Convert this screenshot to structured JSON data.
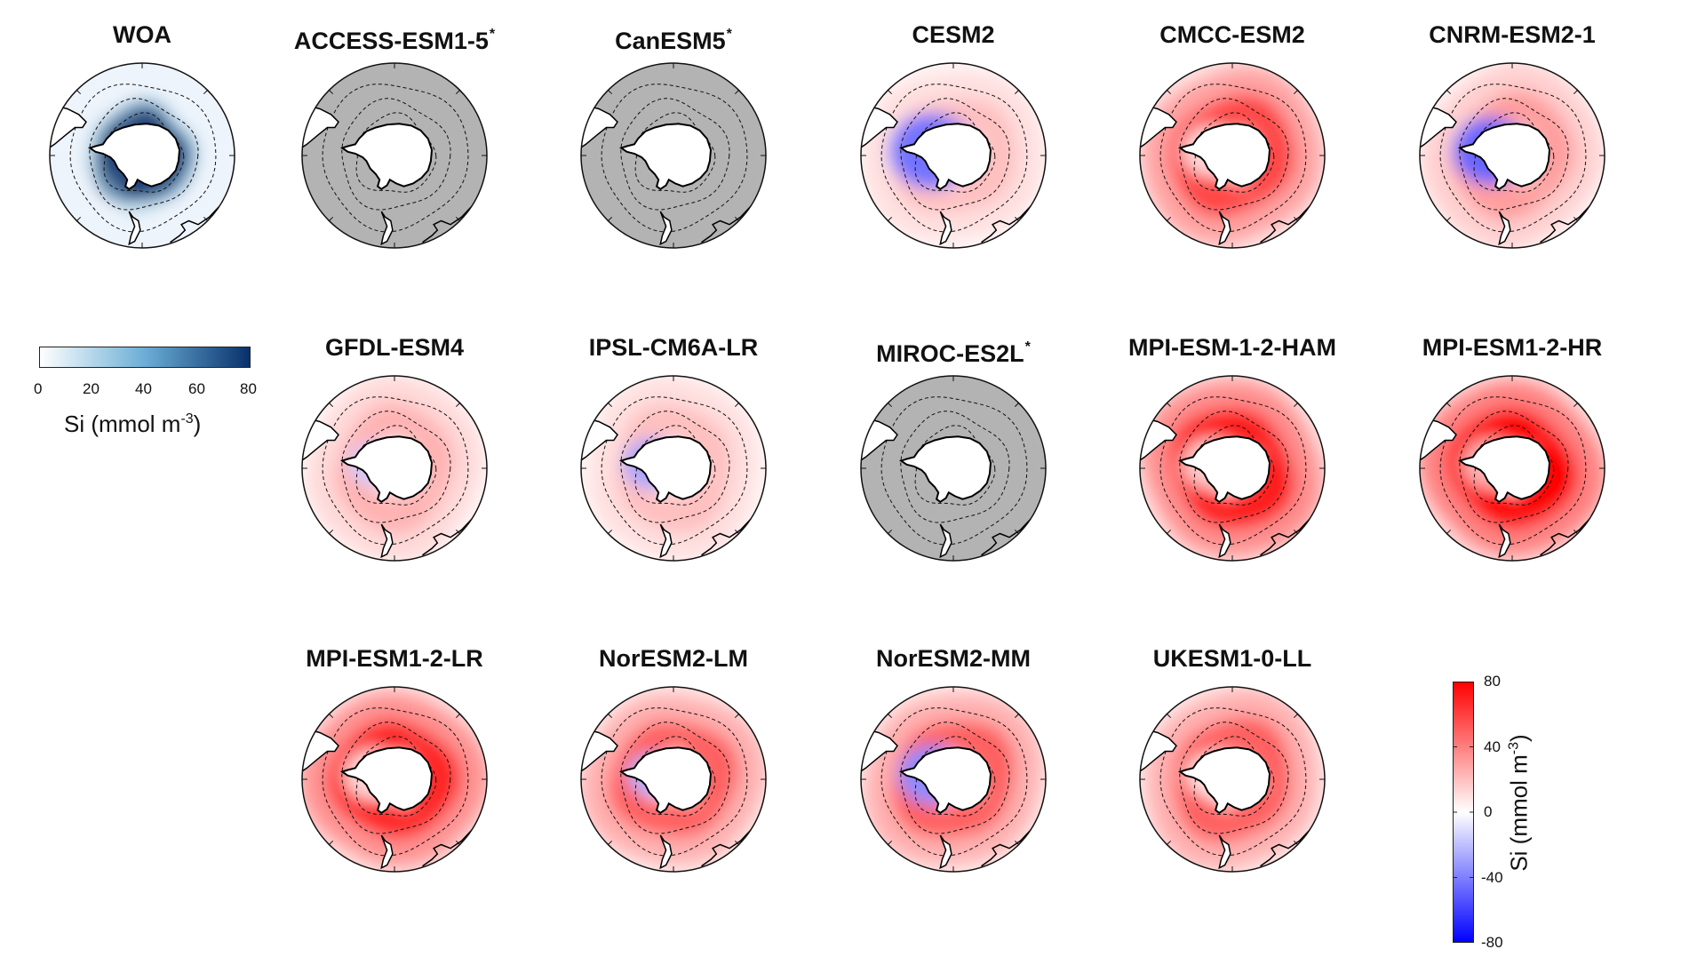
{
  "panels": [
    {
      "id": "woa",
      "title": "WOA",
      "star": "",
      "mode": "obs",
      "ring": 0.95
    },
    {
      "id": "access",
      "title": "ACCESS-ESM1-5",
      "star": "*",
      "mode": "gray",
      "ring": 0
    },
    {
      "id": "canesm5",
      "title": "CanESM5",
      "star": "*",
      "mode": "gray",
      "ring": 0
    },
    {
      "id": "cesm2",
      "title": "CESM2",
      "star": "",
      "mode": "diff",
      "ring": 0.25,
      "inner": -0.55,
      "innerExtent": 0.45
    },
    {
      "id": "cmcc",
      "title": "CMCC-ESM2",
      "star": "",
      "mode": "diff",
      "ring": 0.72,
      "inner": 0.15,
      "innerExtent": 0.3
    },
    {
      "id": "cnrm",
      "title": "CNRM-ESM2-1",
      "star": "",
      "mode": "diff",
      "ring": 0.38,
      "inner": -0.6,
      "innerExtent": 0.4
    },
    {
      "id": "gfdl",
      "title": "GFDL-ESM4",
      "star": "",
      "mode": "diff",
      "ring": 0.3,
      "inner": -0.2,
      "innerExtent": 0.25
    },
    {
      "id": "ipsl",
      "title": "IPSL-CM6A-LR",
      "star": "",
      "mode": "diff",
      "ring": 0.25,
      "inner": -0.35,
      "innerExtent": 0.3
    },
    {
      "id": "miroc",
      "title": "MIROC-ES2L",
      "star": "*",
      "mode": "gray",
      "ring": 0
    },
    {
      "id": "mpiham",
      "title": "MPI-ESM-1-2-HAM",
      "star": "",
      "mode": "diff",
      "ring": 0.88,
      "inner": 0.2,
      "innerExtent": 0.3
    },
    {
      "id": "mpihr",
      "title": "MPI-ESM1-2-HR",
      "star": "",
      "mode": "diff",
      "ring": 0.98,
      "inner": 0.3,
      "innerExtent": 0.3
    },
    {
      "id": "mpilr",
      "title": "MPI-ESM1-2-LR",
      "star": "",
      "mode": "diff",
      "ring": 0.85,
      "inner": 0.15,
      "innerExtent": 0.3
    },
    {
      "id": "noresmlm",
      "title": "NorESM2-LM",
      "star": "",
      "mode": "diff",
      "ring": 0.62,
      "inner": -0.3,
      "innerExtent": 0.25
    },
    {
      "id": "noresmmm",
      "title": "NorESM2-MM",
      "star": "",
      "mode": "diff",
      "ring": 0.62,
      "inner": -0.45,
      "innerExtent": 0.35
    },
    {
      "id": "ukesm",
      "title": "UKESM1-0-LL",
      "star": "",
      "mode": "diff",
      "ring": 0.62,
      "inner": 0.1,
      "innerExtent": 0.25
    }
  ],
  "obs_colorbar": {
    "ticks": [
      "0",
      "20",
      "40",
      "60",
      "80"
    ],
    "label_main": "Si (mmol m",
    "label_sup": "-3",
    "label_close": ")",
    "color_low": "#ffffff",
    "color_high": "#08306b"
  },
  "diff_colorbar": {
    "ticks": [
      "80",
      "40",
      "0",
      "-40",
      "-80"
    ],
    "label_main": "Si (mmol m",
    "label_sup": "-3",
    "label_close": ")",
    "color_high": "#ff0000",
    "color_mid": "#ffffff",
    "color_low": "#0000ff"
  },
  "colors": {
    "land": "#ffffff",
    "gray_fill": "#b3b3b3",
    "coast": "#000000"
  }
}
